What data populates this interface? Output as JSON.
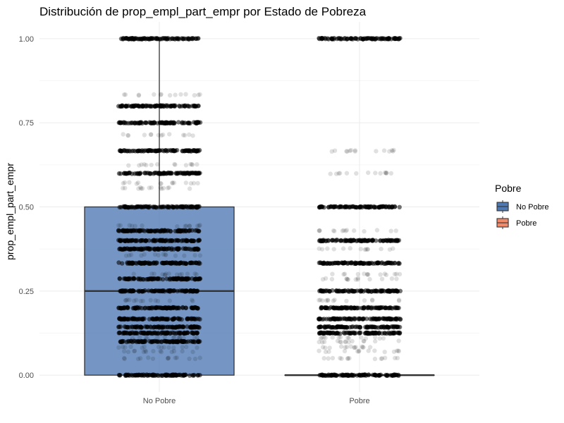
{
  "chart_data": {
    "type": "boxplot",
    "title": "Distribución de prop_empl_part_empr por Estado de Pobreza",
    "xlabel": "",
    "ylabel": "prop_empl_part_empr",
    "ylim": [
      -0.05,
      1.05
    ],
    "y_ticks": [
      0.0,
      0.25,
      0.5,
      0.75,
      1.0
    ],
    "y_tick_labels": [
      "0.00",
      "0.25",
      "0.50",
      "0.75",
      "1.00"
    ],
    "categories": [
      "No Pobre",
      "Pobre"
    ],
    "grid": true,
    "legend": {
      "title": "Pobre",
      "placement": "right",
      "entries": [
        {
          "label": "No Pobre",
          "color": "#4E79B3"
        },
        {
          "label": "Pobre",
          "color": "#F08A6A"
        }
      ]
    },
    "boxes": [
      {
        "category": "No Pobre",
        "min": 0.0,
        "q1": 0.0,
        "median": 0.25,
        "q3": 0.5,
        "max": 1.0,
        "fill": "#4E79B3"
      },
      {
        "category": "Pobre",
        "min": 0.0,
        "q1": 0.0,
        "median": 0.0,
        "q3": 0.0,
        "max": 0.0,
        "fill": "#F08A6A"
      }
    ],
    "jitter_levels": {
      "No Pobre": {
        "dense": [
          0.0,
          0.1,
          0.125,
          0.143,
          0.167,
          0.2,
          0.25,
          0.286,
          0.333,
          0.375,
          0.4,
          0.429,
          0.5,
          0.6,
          0.667,
          0.75,
          0.8,
          1.0
        ],
        "sparse": [
          0.05,
          0.071,
          0.083,
          0.111,
          0.222,
          0.3,
          0.357,
          0.444,
          0.556,
          0.571,
          0.625,
          0.714,
          0.833
        ]
      },
      "Pobre": {
        "dense": [
          0.0,
          0.125,
          0.143,
          0.167,
          0.2,
          0.25,
          0.333,
          0.4,
          0.5,
          1.0
        ],
        "sparse": [
          0.05,
          0.071,
          0.083,
          0.1,
          0.111,
          0.222,
          0.286,
          0.3,
          0.375,
          0.429,
          0.6,
          0.667
        ]
      }
    }
  }
}
